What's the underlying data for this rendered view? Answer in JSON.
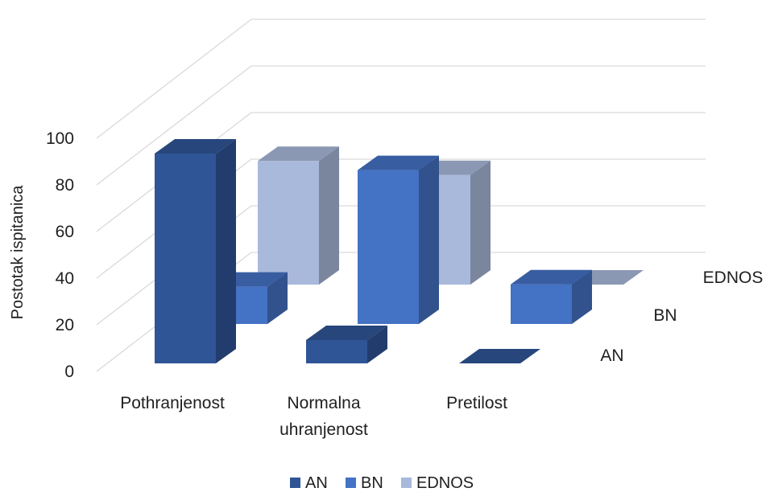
{
  "chart_data": {
    "type": "bar",
    "style": "3d-column",
    "ylabel": "Postotak ispitanica",
    "ylim": [
      0,
      100
    ],
    "yticks": [
      0,
      20,
      40,
      60,
      80,
      100
    ],
    "categories": [
      "Pothranjenost",
      "Normalna uhranjenost",
      "Pretilost"
    ],
    "category_lines": [
      [
        "Pothranjenost"
      ],
      [
        "Normalna",
        "uhranjenost"
      ],
      [
        "Pretilost"
      ]
    ],
    "series": [
      {
        "name": "AN",
        "values": [
          90,
          10,
          0
        ],
        "color": "#2f5597"
      },
      {
        "name": "BN",
        "values": [
          16,
          66,
          17
        ],
        "color": "#4472c4"
      },
      {
        "name": "EDNOS",
        "values": [
          53,
          47,
          0
        ],
        "color": "#a9b9dc"
      }
    ],
    "depth_labels": [
      "AN",
      "BN",
      "EDNOS"
    ],
    "legend": {
      "position": "bottom",
      "entries": [
        "AN",
        "BN",
        "EDNOS"
      ]
    },
    "grid": true
  }
}
